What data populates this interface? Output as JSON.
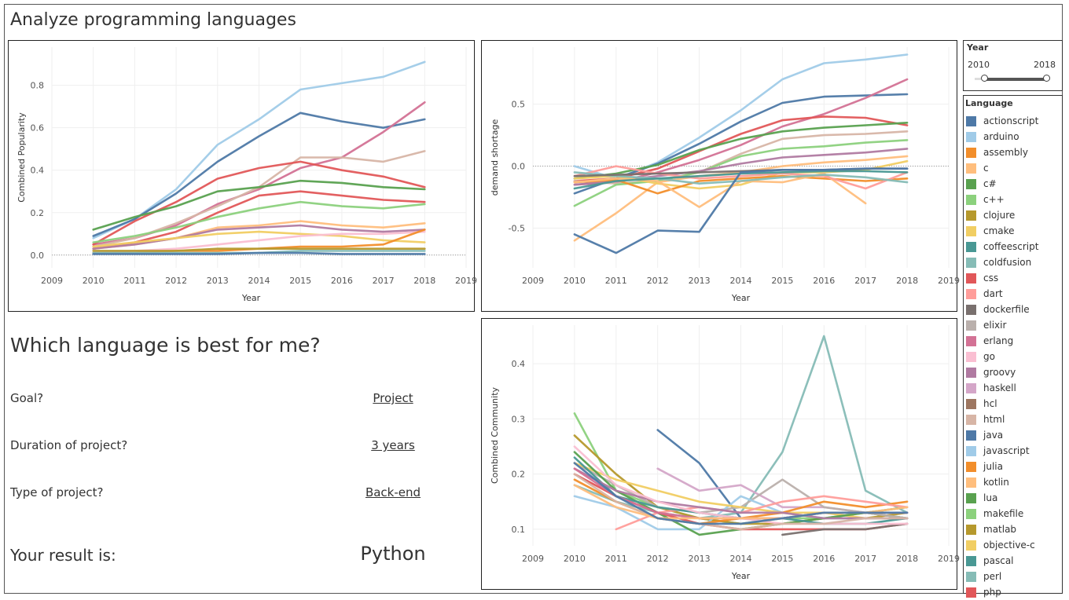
{
  "page": {
    "title": "Analyze programming languages"
  },
  "quiz": {
    "heading": "Which language is best for me?",
    "questions": [
      {
        "label": "Goal?",
        "answer": "Project"
      },
      {
        "label": "Duration of project?",
        "answer": "3 years"
      },
      {
        "label": "Type of project?",
        "answer": "Back-end"
      }
    ],
    "result_label": "Your result is:",
    "result_value": "Python"
  },
  "year_filter": {
    "title": "Year",
    "min_label": "2010",
    "max_label": "2018",
    "min": 2010,
    "max": 2018
  },
  "legend": {
    "title": "Language",
    "items": [
      {
        "name": "actionscript",
        "color": "#4e79a7"
      },
      {
        "name": "arduino",
        "color": "#a0cbe8"
      },
      {
        "name": "assembly",
        "color": "#f28e2b"
      },
      {
        "name": "c",
        "color": "#ffbe7d"
      },
      {
        "name": "c#",
        "color": "#59a14f"
      },
      {
        "name": "c++",
        "color": "#8cd17d"
      },
      {
        "name": "clojure",
        "color": "#b6992d"
      },
      {
        "name": "cmake",
        "color": "#f1ce63"
      },
      {
        "name": "coffeescript",
        "color": "#499894"
      },
      {
        "name": "coldfusion",
        "color": "#86bcb6"
      },
      {
        "name": "css",
        "color": "#e15759"
      },
      {
        "name": "dart",
        "color": "#ff9d9a"
      },
      {
        "name": "dockerfile",
        "color": "#79706e"
      },
      {
        "name": "elixir",
        "color": "#bab0ac"
      },
      {
        "name": "erlang",
        "color": "#d37295"
      },
      {
        "name": "go",
        "color": "#fabfd2"
      },
      {
        "name": "groovy",
        "color": "#b07aa1"
      },
      {
        "name": "haskell",
        "color": "#d4a6c8"
      },
      {
        "name": "hcl",
        "color": "#9d7660"
      },
      {
        "name": "html",
        "color": "#d7b5a6"
      },
      {
        "name": "java",
        "color": "#4e79a7"
      },
      {
        "name": "javascript",
        "color": "#a0cbe8"
      },
      {
        "name": "julia",
        "color": "#f28e2b"
      },
      {
        "name": "kotlin",
        "color": "#ffbe7d"
      },
      {
        "name": "lua",
        "color": "#59a14f"
      },
      {
        "name": "makefile",
        "color": "#8cd17d"
      },
      {
        "name": "matlab",
        "color": "#b6992d"
      },
      {
        "name": "objective-c",
        "color": "#f1ce63"
      },
      {
        "name": "pascal",
        "color": "#499894"
      },
      {
        "name": "perl",
        "color": "#86bcb6"
      },
      {
        "name": "php",
        "color": "#e15759"
      }
    ]
  },
  "chart_data": [
    {
      "type": "line",
      "xlabel": "Year",
      "ylabel": "Combined Popularity",
      "xlim": [
        2009,
        2019
      ],
      "ylim": [
        -0.06,
        0.98
      ],
      "xticks": [
        2009,
        2010,
        2011,
        2012,
        2013,
        2014,
        2015,
        2016,
        2017,
        2018,
        2019
      ],
      "yticks": [
        0.0,
        0.2,
        0.4,
        0.6,
        0.8
      ],
      "ytick_labels": [
        "0.0",
        "0.2",
        "0.4",
        "0.6",
        "0.8"
      ],
      "x": [
        2010,
        2011,
        2012,
        2013,
        2014,
        2015,
        2016,
        2017,
        2018
      ],
      "series": [
        {
          "color": "#a0cbe8",
          "values": [
            0.08,
            0.17,
            0.31,
            0.52,
            0.64,
            0.78,
            0.81,
            0.84,
            0.91
          ]
        },
        {
          "color": "#4e79a7",
          "values": [
            0.09,
            0.17,
            0.29,
            0.44,
            0.56,
            0.67,
            0.63,
            0.6,
            0.64
          ]
        },
        {
          "color": "#d37295",
          "values": [
            0.05,
            0.08,
            0.14,
            0.24,
            0.31,
            0.41,
            0.46,
            0.58,
            0.72
          ]
        },
        {
          "color": "#d7b5a6",
          "values": [
            0.04,
            0.08,
            0.15,
            0.23,
            0.32,
            0.46,
            0.46,
            0.44,
            0.49
          ]
        },
        {
          "color": "#e15759",
          "values": [
            0.05,
            0.16,
            0.25,
            0.36,
            0.41,
            0.44,
            0.4,
            0.37,
            0.32
          ]
        },
        {
          "color": "#59a14f",
          "values": [
            0.12,
            0.18,
            0.23,
            0.3,
            0.32,
            0.35,
            0.34,
            0.32,
            0.31
          ]
        },
        {
          "color": "#e15759",
          "values": [
            0.03,
            0.06,
            0.11,
            0.2,
            0.28,
            0.3,
            0.28,
            0.26,
            0.25
          ]
        },
        {
          "color": "#8cd17d",
          "values": [
            0.06,
            0.09,
            0.13,
            0.18,
            0.22,
            0.25,
            0.23,
            0.22,
            0.24
          ]
        },
        {
          "color": "#ffbe7d",
          "values": [
            0.03,
            0.05,
            0.08,
            0.13,
            0.14,
            0.16,
            0.14,
            0.13,
            0.15
          ]
        },
        {
          "color": "#b07aa1",
          "values": [
            0.03,
            0.05,
            0.08,
            0.12,
            0.13,
            0.14,
            0.12,
            0.11,
            0.12
          ]
        },
        {
          "color": "#f1ce63",
          "values": [
            0.04,
            0.06,
            0.08,
            0.1,
            0.11,
            0.1,
            0.09,
            0.07,
            0.06
          ]
        },
        {
          "color": "#fabfd2",
          "values": [
            0.01,
            0.02,
            0.03,
            0.05,
            0.07,
            0.09,
            0.1,
            0.1,
            0.11
          ]
        },
        {
          "color": "#f28e2b",
          "values": [
            0.01,
            0.01,
            0.02,
            0.02,
            0.03,
            0.04,
            0.04,
            0.05,
            0.12
          ]
        },
        {
          "color": "#b6992d",
          "values": [
            0.02,
            0.02,
            0.02,
            0.03,
            0.03,
            0.03,
            0.03,
            0.03,
            0.03
          ]
        },
        {
          "color": "#86bcb6",
          "values": [
            0.01,
            0.01,
            0.01,
            0.01,
            0.01,
            0.02,
            0.02,
            0.02,
            0.02
          ]
        },
        {
          "color": "#4e79a7",
          "values": [
            0.005,
            0.005,
            0.005,
            0.005,
            0.01,
            0.01,
            0.005,
            0.005,
            0.005
          ]
        }
      ]
    },
    {
      "type": "line",
      "xlabel": "Year",
      "ylabel": "demand shortage",
      "xlim": [
        2009,
        2019
      ],
      "ylim": [
        -0.82,
        0.96
      ],
      "xticks": [
        2009,
        2010,
        2011,
        2012,
        2013,
        2014,
        2015,
        2016,
        2017,
        2018,
        2019
      ],
      "yticks": [
        -0.5,
        0.0,
        0.5
      ],
      "ytick_labels": [
        "-0.5",
        "0.0",
        "0.5"
      ],
      "x": [
        2010,
        2011,
        2012,
        2013,
        2014,
        2015,
        2016,
        2017,
        2018
      ],
      "series": [
        {
          "color": "#a0cbe8",
          "values": [
            0.0,
            -0.1,
            0.03,
            0.23,
            0.45,
            0.7,
            0.83,
            0.86,
            0.9
          ]
        },
        {
          "color": "#4e79a7",
          "values": [
            -0.22,
            -0.1,
            0.02,
            0.18,
            0.36,
            0.51,
            0.56,
            0.57,
            0.58
          ]
        },
        {
          "color": "#d37295",
          "values": [
            -0.15,
            -0.13,
            -0.05,
            0.05,
            0.17,
            0.32,
            0.42,
            0.55,
            0.7
          ]
        },
        {
          "color": "#e15759",
          "values": [
            -0.12,
            -0.1,
            -0.02,
            0.12,
            0.26,
            0.37,
            0.4,
            0.39,
            0.33
          ]
        },
        {
          "color": "#59a14f",
          "values": [
            -0.1,
            -0.06,
            0.01,
            0.13,
            0.22,
            0.28,
            0.31,
            0.33,
            0.35
          ]
        },
        {
          "color": "#d7b5a6",
          "values": [
            -0.12,
            -0.14,
            -0.12,
            -0.05,
            0.1,
            0.22,
            0.25,
            0.26,
            0.28
          ]
        },
        {
          "color": "#8cd17d",
          "values": [
            -0.32,
            -0.15,
            -0.12,
            -0.05,
            0.08,
            0.14,
            0.16,
            0.19,
            0.21
          ]
        },
        {
          "color": "#b07aa1",
          "values": [
            -0.15,
            -0.12,
            -0.08,
            -0.04,
            0.02,
            0.07,
            0.09,
            0.11,
            0.14
          ]
        },
        {
          "color": "#ffbe7d",
          "values": [
            -0.6,
            -0.38,
            -0.13,
            -0.08,
            -0.05,
            0.0,
            0.03,
            0.05,
            0.08
          ]
        },
        {
          "color": "#f1ce63",
          "values": [
            -0.1,
            -0.08,
            -0.14,
            -0.18,
            -0.15,
            -0.05,
            -0.05,
            -0.03,
            0.04
          ]
        },
        {
          "color": "#f28e2b",
          "values": [
            -0.13,
            -0.11,
            -0.22,
            -0.12,
            -0.1,
            -0.08,
            -0.1,
            -0.12,
            -0.1
          ]
        },
        {
          "color": "#ffbe7d",
          "values": [
            -0.13,
            -0.1,
            -0.12,
            -0.33,
            -0.12,
            -0.13,
            -0.06,
            -0.3,
            null
          ]
        },
        {
          "color": "#ff9d9a",
          "values": [
            -0.08,
            0.0,
            -0.06,
            -0.1,
            -0.08,
            -0.06,
            -0.08,
            -0.18,
            -0.05
          ]
        },
        {
          "color": "#86bcb6",
          "values": [
            -0.05,
            -0.08,
            -0.1,
            -0.14,
            -0.12,
            -0.09,
            -0.07,
            -0.09,
            -0.13
          ]
        },
        {
          "color": "#79706e",
          "values": [
            -0.08,
            -0.07,
            -0.06,
            -0.05,
            -0.04,
            -0.03,
            -0.03,
            -0.02,
            -0.02
          ]
        },
        {
          "color": "#499894",
          "values": [
            -0.18,
            -0.12,
            -0.1,
            -0.08,
            -0.06,
            -0.05,
            -0.04,
            -0.04,
            -0.05
          ]
        },
        {
          "color": "#4e79a7",
          "values": [
            -0.55,
            -0.7,
            -0.52,
            -0.53,
            -0.05,
            -0.03,
            -0.03,
            -0.02,
            -0.02
          ]
        }
      ]
    },
    {
      "type": "line",
      "xlabel": "Year",
      "ylabel": "Combined Community",
      "xlim": [
        2009,
        2019
      ],
      "ylim": [
        0.07,
        0.47
      ],
      "xticks": [
        2009,
        2010,
        2011,
        2012,
        2013,
        2014,
        2015,
        2016,
        2017,
        2018,
        2019
      ],
      "yticks": [
        0.1,
        0.2,
        0.3,
        0.4
      ],
      "ytick_labels": [
        "0.1",
        "0.2",
        "0.3",
        "0.4"
      ],
      "x": [
        2010,
        2011,
        2012,
        2013,
        2014,
        2015,
        2016,
        2017,
        2018
      ],
      "series": [
        {
          "color": "#86bcb6",
          "values": [
            0.18,
            0.15,
            0.13,
            0.12,
            0.13,
            0.24,
            0.45,
            0.17,
            0.13
          ]
        },
        {
          "color": "#4e79a7",
          "values": [
            null,
            null,
            0.28,
            0.22,
            0.12,
            0.12,
            0.13,
            0.13,
            0.12
          ]
        },
        {
          "color": "#8cd17d",
          "values": [
            0.31,
            0.17,
            0.14,
            0.12,
            0.11,
            0.12,
            0.12,
            0.13,
            0.12
          ]
        },
        {
          "color": "#b6992d",
          "values": [
            0.27,
            0.2,
            0.14,
            0.12,
            0.11,
            0.11,
            0.12,
            0.12,
            0.13
          ]
        },
        {
          "color": "#d4a6c8",
          "values": [
            null,
            null,
            0.21,
            0.17,
            0.18,
            0.14,
            0.14,
            0.13,
            0.13
          ]
        },
        {
          "color": "#bab0ac",
          "values": [
            0.22,
            0.18,
            0.14,
            0.13,
            0.14,
            0.19,
            0.14,
            0.13,
            0.12
          ]
        },
        {
          "color": "#a0cbe8",
          "values": [
            0.16,
            0.14,
            0.1,
            0.1,
            0.16,
            0.13,
            0.12,
            0.12,
            0.12
          ]
        },
        {
          "color": "#f1ce63",
          "values": [
            0.22,
            0.19,
            0.17,
            0.15,
            0.14,
            0.13,
            0.13,
            0.12,
            0.12
          ]
        },
        {
          "color": "#59a14f",
          "values": [
            0.24,
            0.17,
            0.13,
            0.09,
            0.1,
            0.11,
            0.12,
            0.13,
            0.14
          ]
        },
        {
          "color": "#f28e2b",
          "values": [
            0.19,
            0.15,
            0.12,
            0.11,
            0.12,
            0.13,
            0.15,
            0.14,
            0.15
          ]
        },
        {
          "color": "#e15759",
          "values": [
            0.2,
            0.16,
            0.13,
            0.11,
            0.1,
            0.1,
            0.1,
            0.1,
            0.11
          ]
        },
        {
          "color": "#ff9d9a",
          "values": [
            null,
            0.1,
            0.13,
            0.14,
            0.13,
            0.15,
            0.16,
            0.15,
            0.14
          ]
        },
        {
          "color": "#499894",
          "values": [
            0.23,
            0.16,
            0.14,
            0.13,
            0.12,
            0.12,
            0.11,
            0.11,
            0.12
          ]
        },
        {
          "color": "#79706e",
          "values": [
            null,
            null,
            null,
            null,
            null,
            0.09,
            0.1,
            0.1,
            0.11
          ]
        },
        {
          "color": "#b07aa1",
          "values": [
            0.21,
            0.17,
            0.15,
            0.14,
            0.13,
            0.13,
            0.12,
            0.12,
            0.12
          ]
        },
        {
          "color": "#fabfd2",
          "values": [
            0.25,
            0.18,
            0.15,
            0.13,
            0.12,
            0.11,
            0.11,
            0.11,
            0.11
          ]
        },
        {
          "color": "#d37295",
          "values": [
            0.21,
            0.16,
            0.13,
            0.12,
            0.12,
            0.12,
            0.13,
            0.13,
            0.13
          ]
        },
        {
          "color": "#d7b5a6",
          "values": [
            0.2,
            0.15,
            0.12,
            0.11,
            0.1,
            0.11,
            0.11,
            0.12,
            0.12
          ]
        },
        {
          "color": "#ffbe7d",
          "values": [
            0.18,
            0.14,
            0.12,
            0.12,
            0.12,
            0.12,
            0.13,
            0.13,
            0.14
          ]
        },
        {
          "color": "#4e79a7",
          "values": [
            0.22,
            0.16,
            0.12,
            0.11,
            0.11,
            0.12,
            0.13,
            0.13,
            0.13
          ]
        }
      ]
    }
  ]
}
